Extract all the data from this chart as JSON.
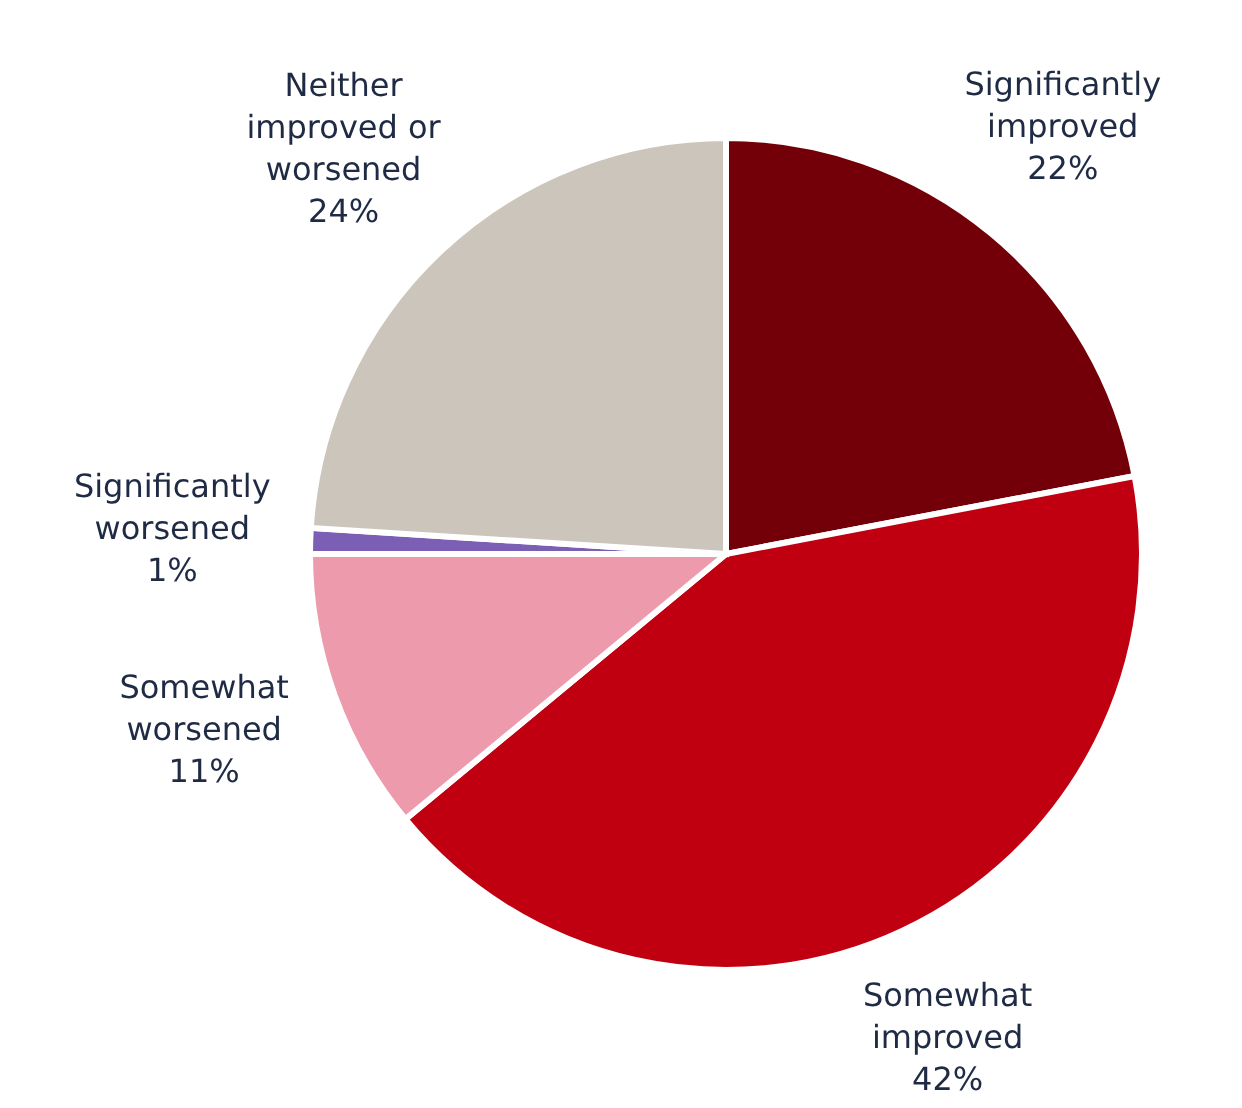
{
  "chart_data": {
    "type": "pie",
    "categories": [
      "Significantly improved",
      "Somewhat improved",
      "Somewhat worsened",
      "Significantly worsened",
      "Neither improved or worsened"
    ],
    "values": [
      22,
      42,
      11,
      1,
      24
    ],
    "colors": [
      "#730008",
      "#c00010",
      "#ee9aad",
      "#7b5fb5",
      "#ccc5bb"
    ],
    "value_labels": [
      "22%",
      "42%",
      "11%",
      "1%",
      "24%"
    ]
  }
}
